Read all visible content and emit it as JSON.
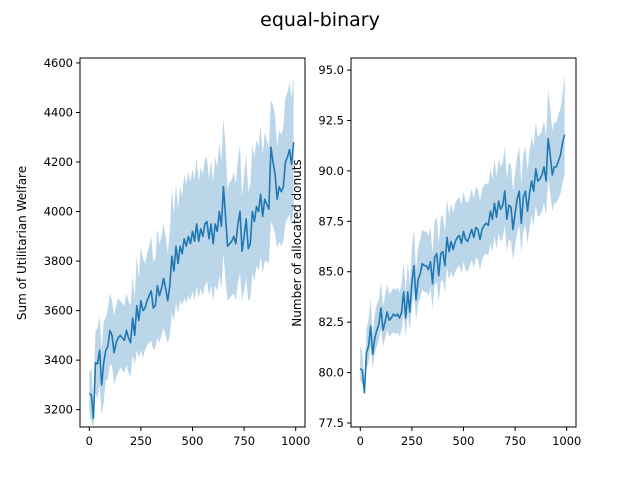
{
  "figure": {
    "title": "equal-binary"
  },
  "chart_data": [
    {
      "type": "line",
      "title": "",
      "xlabel": "",
      "ylabel": "Sum of Utilitarian Welfare",
      "xlim": [
        -45,
        1045
      ],
      "ylim": [
        3130,
        4620
      ],
      "xticks": [
        0,
        250,
        500,
        750,
        1000
      ],
      "yticks": [
        3200,
        3400,
        3600,
        3800,
        4000,
        4200,
        4400,
        4600
      ],
      "line_color": "#1f77b4",
      "band_color": "#1f77b4",
      "series": [
        {
          "x": [
            0,
            10,
            20,
            30,
            40,
            50,
            60,
            70,
            80,
            90,
            100,
            110,
            120,
            130,
            140,
            150,
            160,
            170,
            180,
            190,
            200,
            210,
            220,
            230,
            240,
            250,
            260,
            270,
            280,
            290,
            300,
            310,
            320,
            330,
            340,
            350,
            360,
            370,
            380,
            390,
            400,
            410,
            420,
            430,
            440,
            450,
            460,
            470,
            480,
            490,
            500,
            510,
            520,
            530,
            540,
            550,
            560,
            570,
            580,
            590,
            600,
            610,
            620,
            630,
            640,
            650,
            660,
            670,
            680,
            690,
            700,
            710,
            720,
            730,
            740,
            750,
            760,
            770,
            780,
            790,
            800,
            810,
            820,
            830,
            840,
            850,
            860,
            870,
            880,
            890,
            900,
            910,
            920,
            930,
            940,
            950,
            960,
            970,
            980,
            990
          ],
          "mean": [
            3265,
            3260,
            3165,
            3390,
            3385,
            3440,
            3300,
            3390,
            3440,
            3455,
            3520,
            3500,
            3430,
            3470,
            3490,
            3500,
            3490,
            3480,
            3520,
            3490,
            3470,
            3570,
            3500,
            3620,
            3560,
            3640,
            3600,
            3610,
            3640,
            3660,
            3680,
            3610,
            3620,
            3700,
            3660,
            3690,
            3730,
            3690,
            3640,
            3700,
            3820,
            3760,
            3860,
            3790,
            3860,
            3830,
            3890,
            3860,
            3900,
            3870,
            3920,
            3880,
            3950,
            3880,
            3930,
            3900,
            3950,
            3960,
            3890,
            3950,
            3870,
            3950,
            3920,
            4000,
            3940,
            4100,
            3980,
            3860,
            3870,
            3880,
            3900,
            3870,
            3950,
            4000,
            3840,
            3900,
            3970,
            3850,
            3870,
            4000,
            3960,
            4020,
            4000,
            4070,
            3980,
            4050,
            4030,
            4010,
            4260,
            4200,
            4150,
            4050,
            4100,
            4080,
            4100,
            4200,
            4220,
            4250,
            4190,
            4280
          ],
          "lower": [
            3190,
            3150,
            3130,
            3270,
            3240,
            3300,
            3180,
            3230,
            3320,
            3320,
            3380,
            3380,
            3300,
            3330,
            3350,
            3370,
            3360,
            3350,
            3380,
            3350,
            3330,
            3420,
            3380,
            3440,
            3410,
            3440,
            3410,
            3440,
            3460,
            3470,
            3480,
            3440,
            3450,
            3490,
            3470,
            3500,
            3530,
            3500,
            3470,
            3500,
            3590,
            3560,
            3630,
            3590,
            3640,
            3620,
            3650,
            3630,
            3660,
            3640,
            3680,
            3640,
            3700,
            3650,
            3690,
            3660,
            3700,
            3720,
            3660,
            3700,
            3640,
            3700,
            3680,
            3740,
            3690,
            3830,
            3720,
            3640,
            3650,
            3660,
            3670,
            3640,
            3710,
            3750,
            3640,
            3680,
            3730,
            3640,
            3650,
            3750,
            3720,
            3780,
            3760,
            3820,
            3750,
            3800,
            3800,
            3790,
            3960,
            3940,
            3910,
            3850,
            3880,
            3860,
            3880,
            3950,
            3970,
            3990,
            3940,
            4010
          ],
          "upper": [
            3350,
            3370,
            3230,
            3520,
            3530,
            3580,
            3440,
            3560,
            3570,
            3610,
            3670,
            3640,
            3580,
            3620,
            3650,
            3640,
            3630,
            3620,
            3670,
            3640,
            3620,
            3740,
            3650,
            3820,
            3730,
            3860,
            3810,
            3790,
            3830,
            3860,
            3900,
            3800,
            3810,
            3930,
            3870,
            3900,
            3950,
            3900,
            3830,
            3920,
            4090,
            3990,
            4110,
            4010,
            4100,
            4060,
            4150,
            4110,
            4160,
            4120,
            4170,
            4130,
            4220,
            4120,
            4180,
            4150,
            4210,
            4220,
            4130,
            4210,
            4120,
            4220,
            4180,
            4280,
            4200,
            4380,
            4260,
            4090,
            4120,
            4130,
            4160,
            4110,
            4210,
            4270,
            4060,
            4150,
            4230,
            4080,
            4110,
            4270,
            4220,
            4290,
            4260,
            4350,
            4230,
            4320,
            4290,
            4260,
            4450,
            4430,
            4390,
            4260,
            4330,
            4310,
            4340,
            4460,
            4480,
            4520,
            4460,
            4550
          ]
        }
      ]
    },
    {
      "type": "line",
      "title": "",
      "xlabel": "",
      "ylabel": "Number of allocated donuts",
      "xlim": [
        -45,
        1045
      ],
      "ylim": [
        77.3,
        95.6
      ],
      "xticks": [
        0,
        250,
        500,
        750,
        1000
      ],
      "yticks": [
        77.5,
        80.0,
        82.5,
        85.0,
        87.5,
        90.0,
        92.5,
        95.0
      ],
      "yticklabels": [
        "77.5",
        "80.0",
        "82.5",
        "85.0",
        "87.5",
        "90.0",
        "92.5",
        "95.0"
      ],
      "line_color": "#1f77b4",
      "band_color": "#1f77b4",
      "series": [
        {
          "x": [
            0,
            10,
            20,
            30,
            40,
            50,
            60,
            70,
            80,
            90,
            100,
            110,
            120,
            130,
            140,
            150,
            160,
            170,
            180,
            190,
            200,
            210,
            220,
            230,
            240,
            250,
            260,
            270,
            280,
            290,
            300,
            310,
            320,
            330,
            340,
            350,
            360,
            370,
            380,
            390,
            400,
            410,
            420,
            430,
            440,
            450,
            460,
            470,
            480,
            490,
            500,
            510,
            520,
            530,
            540,
            550,
            560,
            570,
            580,
            590,
            600,
            610,
            620,
            630,
            640,
            650,
            660,
            670,
            680,
            690,
            700,
            710,
            720,
            730,
            740,
            750,
            760,
            770,
            780,
            790,
            800,
            810,
            820,
            830,
            840,
            850,
            860,
            870,
            880,
            890,
            900,
            910,
            920,
            930,
            940,
            950,
            960,
            970,
            980,
            990
          ],
          "mean": [
            80.2,
            80.1,
            79.0,
            81.0,
            81.3,
            82.3,
            80.9,
            81.7,
            82.1,
            82.4,
            83.2,
            82.1,
            82.5,
            83.0,
            82.6,
            82.7,
            82.9,
            82.8,
            82.9,
            82.7,
            83.0,
            84.0,
            82.7,
            84.0,
            83.0,
            84.5,
            85.3,
            83.6,
            84.6,
            84.9,
            85.4,
            85.3,
            85.3,
            85.1,
            85.5,
            84.4,
            85.7,
            85.9,
            84.8,
            85.9,
            86.0,
            85.3,
            86.7,
            86.0,
            86.5,
            86.1,
            86.5,
            86.7,
            86.8,
            86.4,
            87.0,
            86.6,
            86.5,
            86.8,
            87.1,
            86.7,
            87.2,
            87.1,
            86.6,
            87.1,
            87.3,
            87.4,
            87.3,
            88.0,
            87.6,
            88.4,
            87.7,
            88.5,
            88.1,
            88.3,
            89.0,
            87.6,
            88.3,
            88.2,
            87.1,
            87.9,
            88.6,
            89.0,
            87.4,
            88.7,
            89.0,
            88.0,
            88.9,
            89.5,
            89.0,
            90.1,
            89.5,
            89.6,
            89.8,
            90.2,
            89.5,
            91.6,
            90.8,
            89.8,
            90.2,
            90.2,
            90.5,
            90.8,
            91.4,
            91.8
          ],
          "lower": [
            79.6,
            79.4,
            78.9,
            80.2,
            80.5,
            81.3,
            80.2,
            80.9,
            81.3,
            81.6,
            82.2,
            81.3,
            81.7,
            82.1,
            81.8,
            81.9,
            82.0,
            81.9,
            82.0,
            81.8,
            82.1,
            82.9,
            81.8,
            82.9,
            82.1,
            83.3,
            84.0,
            82.6,
            83.4,
            83.7,
            84.1,
            84.0,
            84.0,
            83.8,
            84.2,
            83.2,
            84.3,
            84.5,
            83.5,
            84.5,
            84.6,
            84.0,
            85.2,
            84.6,
            85.0,
            84.7,
            85.0,
            85.2,
            85.3,
            84.9,
            85.5,
            85.1,
            85.0,
            85.3,
            85.6,
            85.2,
            85.7,
            85.6,
            85.1,
            85.6,
            85.8,
            85.9,
            85.8,
            86.4,
            86.0,
            86.8,
            86.1,
            86.9,
            86.5,
            86.7,
            87.3,
            86.0,
            86.6,
            86.5,
            85.6,
            86.3,
            86.9,
            87.3,
            85.9,
            87.0,
            87.3,
            86.4,
            87.2,
            87.8,
            87.3,
            88.3,
            87.7,
            87.8,
            88.0,
            88.4,
            87.8,
            89.6,
            88.9,
            88.0,
            88.4,
            88.4,
            88.6,
            88.9,
            89.4,
            89.8
          ],
          "upper": [
            81.3,
            81.0,
            79.5,
            82.2,
            82.6,
            83.7,
            81.9,
            82.9,
            83.4,
            83.6,
            84.5,
            83.3,
            83.8,
            84.4,
            83.9,
            84.0,
            84.2,
            84.1,
            84.2,
            84.0,
            84.4,
            85.5,
            84.0,
            85.5,
            84.3,
            86.2,
            87.1,
            85.1,
            86.2,
            86.6,
            87.1,
            87.0,
            87.0,
            86.8,
            87.2,
            85.9,
            87.5,
            87.7,
            86.4,
            87.7,
            87.8,
            87.0,
            88.6,
            87.8,
            88.4,
            87.9,
            88.4,
            88.6,
            88.7,
            88.3,
            89.0,
            88.5,
            88.4,
            88.7,
            89.1,
            88.6,
            89.2,
            89.1,
            88.5,
            89.1,
            89.3,
            89.4,
            89.3,
            90.1,
            89.6,
            90.6,
            89.7,
            90.6,
            90.2,
            90.4,
            91.2,
            89.6,
            90.4,
            90.3,
            89.0,
            89.9,
            90.7,
            91.2,
            89.4,
            90.8,
            91.2,
            90.0,
            91.0,
            91.7,
            91.2,
            92.4,
            91.7,
            91.8,
            92.0,
            92.5,
            91.7,
            94.0,
            93.1,
            92.0,
            92.4,
            92.4,
            92.8,
            93.1,
            93.8,
            94.8
          ]
        }
      ]
    }
  ]
}
